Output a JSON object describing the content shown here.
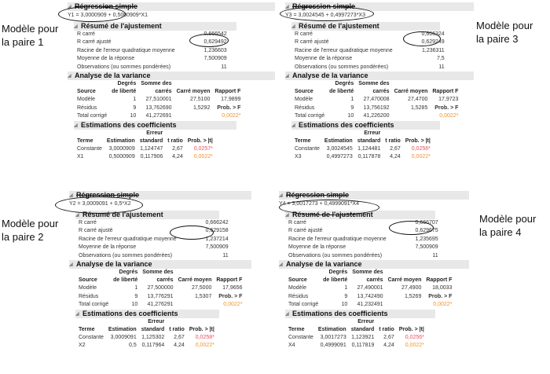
{
  "labels": [
    "Modèle pour\nla paire 1",
    "Modèle pour\nla paire 3",
    "Modèle pour\nla paire 2",
    "Modèle pour\nla paire 4"
  ],
  "section_titles": {
    "reg": "Régression simple",
    "fit": "Résumé de l'ajustement",
    "anova": "Analyse de la variance",
    "coef": "Estimations des coefficients"
  },
  "fit_labels": [
    "R carré",
    "R carré ajusté",
    "Racine de l'erreur quadratique moyenne",
    "Moyenne de la réponse",
    "Observations (ou sommes pondérées)"
  ],
  "anova_headers": [
    "Source",
    "Degrés\nde liberté",
    "Somme des\ncarrés",
    "Carré moyen",
    "Rapport F"
  ],
  "anova_sources": [
    "Modèle",
    "Résidus",
    "Total corrigé"
  ],
  "prob_f_label": "Prob. > F",
  "coef_headers": [
    "Terme",
    "Estimation",
    "Erreur\nstandard",
    "t ratio",
    "Prob. > |t|"
  ],
  "panels": [
    {
      "id": "p1",
      "equation": "Y1 = 3,0000909 + 0,5000909*X1",
      "fit": [
        "0,666542",
        "0,629492",
        "1,236603",
        "7,500909",
        "11"
      ],
      "anova": [
        [
          "1",
          "27,510001",
          "27,5100",
          "17,9899"
        ],
        [
          "9",
          "13,762690",
          "1,5292",
          ""
        ],
        [
          "10",
          "41,272691",
          "",
          "0,0022*"
        ]
      ],
      "coef": [
        [
          "Constante",
          "3,0000909",
          "1,124747",
          "2,67",
          "0,0257*"
        ],
        [
          "X1",
          "0,5000909",
          "0,117906",
          "4,24",
          "0,0022*"
        ]
      ]
    },
    {
      "id": "p3",
      "equation": "Y3 = 3,0024545 + 0,4997273*X3",
      "fit": [
        "0,666324",
        "0,629249",
        "1,236311",
        "7,5",
        "11"
      ],
      "anova": [
        [
          "1",
          "27,470008",
          "27,4700",
          "17,9723"
        ],
        [
          "9",
          "13,756192",
          "1,5285",
          ""
        ],
        [
          "10",
          "41,226200",
          "",
          "0,0022*"
        ]
      ],
      "coef": [
        [
          "Constante",
          "3,0024545",
          "1,124481",
          "2,67",
          "0,0256*"
        ],
        [
          "X3",
          "0,4997273",
          "0,117878",
          "4,24",
          "0,0022*"
        ]
      ]
    },
    {
      "id": "p2",
      "equation": "Y2 = 3,0009091 + 0,5*X2",
      "fit": [
        "0,666242",
        "0,629158",
        "1,237214",
        "7,500909",
        "11"
      ],
      "anova": [
        [
          "1",
          "27,500000",
          "27,5000",
          "17,9656"
        ],
        [
          "9",
          "13,776291",
          "1,5307",
          ""
        ],
        [
          "10",
          "41,276291",
          "",
          "0,0022*"
        ]
      ],
      "coef": [
        [
          "Constante",
          "3,0009091",
          "1,125302",
          "2,67",
          "0,0258*"
        ],
        [
          "X2",
          "0,5",
          "0,117964",
          "4,24",
          "0,0022*"
        ]
      ]
    },
    {
      "id": "p4",
      "equation": "Y4 = 3,0017273 + 0,4999091*X4",
      "fit": [
        "0,666707",
        "0,629675",
        "1,235695",
        "7,500909",
        "11"
      ],
      "anova": [
        [
          "1",
          "27,490001",
          "27,4900",
          "18,0033"
        ],
        [
          "9",
          "13,742490",
          "1,5269",
          ""
        ],
        [
          "10",
          "41,232491",
          "",
          "0,0022*"
        ]
      ],
      "coef": [
        [
          "Constante",
          "3,0017273",
          "1,123921",
          "2,67",
          "0,0256*"
        ],
        [
          "X4",
          "0,4999091",
          "0,117819",
          "4,24",
          "0,0022*"
        ]
      ]
    }
  ]
}
